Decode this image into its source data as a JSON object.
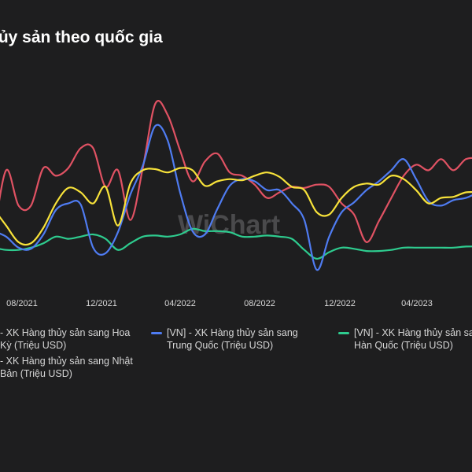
{
  "title": "thủy sản theo quốc gia",
  "watermark": "WiChart",
  "chart_data": {
    "type": "line",
    "title": "thủy sản theo quốc gia",
    "x_tick_labels": [
      "08/2021",
      "12/2021",
      "04/2022",
      "08/2022",
      "12/2022",
      "04/2023"
    ],
    "legend_placement": "bottom",
    "grid": false,
    "series": [
      {
        "name": "[VN] - XK Hàng thủy sản sang Hoa Kỳ (Triệu USD)",
        "legend": "- XK Hàng thủy sản sang Hoa Kỳ (Triệu USD)",
        "color": "#e05263",
        "values": [
          170,
          230,
          198,
          198,
          232,
          225,
          232,
          250,
          250,
          215,
          230,
          185,
          232,
          290,
          280,
          248,
          220,
          238,
          245,
          228,
          225,
          217,
          205,
          210,
          215,
          214,
          217,
          215,
          200,
          190,
          165,
          184,
          205,
          225,
          235,
          230,
          240,
          230,
          240,
          241
        ]
      },
      {
        "name": "[VN] - XK Hàng thủy sản sang Trung Quốc (Triệu USD)",
        "legend": "[VN] - XK Hàng thủy sản sang Trung Quốc (Triệu USD)",
        "color": "#4f7cf2",
        "values": [
          175,
          170,
          160,
          159,
          172,
          194,
          200,
          199,
          160,
          155,
          174,
          208,
          234,
          270,
          257,
          210,
          175,
          172,
          195,
          216,
          222,
          220,
          212,
          212,
          200,
          185,
          140,
          170,
          192,
          201,
          212,
          220,
          230,
          240,
          222,
          202,
          198,
          203,
          205,
          210
        ]
      },
      {
        "name": "[VN] - XK Hàng thủy sản sang Nhật Bản (Triệu USD)",
        "legend": "- XK Hàng thủy sản sang Nhật Bản (Triệu USD)",
        "color": "#f7e23a",
        "values": [
          195,
          180,
          165,
          164,
          178,
          200,
          214,
          210,
          200,
          215,
          180,
          218,
          230,
          231,
          228,
          232,
          230,
          216,
          220,
          222,
          221,
          225,
          228,
          224,
          215,
          212,
          192,
          190,
          205,
          215,
          218,
          217,
          225,
          222,
          212,
          200,
          205,
          206,
          210,
          210
        ]
      },
      {
        "name": "[VN] - XK Hàng thủy sản sang Hàn Quốc (Triệu USD)",
        "legend": "[VN] - XK Hàng thủy sản sang Hàn Quốc (Triệu USD)",
        "color": "#2ecc8f",
        "values": [
          160,
          158,
          158,
          160,
          164,
          170,
          168,
          170,
          172,
          168,
          158,
          164,
          170,
          171,
          170,
          172,
          177,
          175,
          175,
          174,
          170,
          170,
          171,
          170,
          168,
          158,
          150,
          156,
          160,
          159,
          157,
          157,
          158,
          160,
          160,
          160,
          160,
          160,
          161,
          161
        ]
      }
    ]
  }
}
